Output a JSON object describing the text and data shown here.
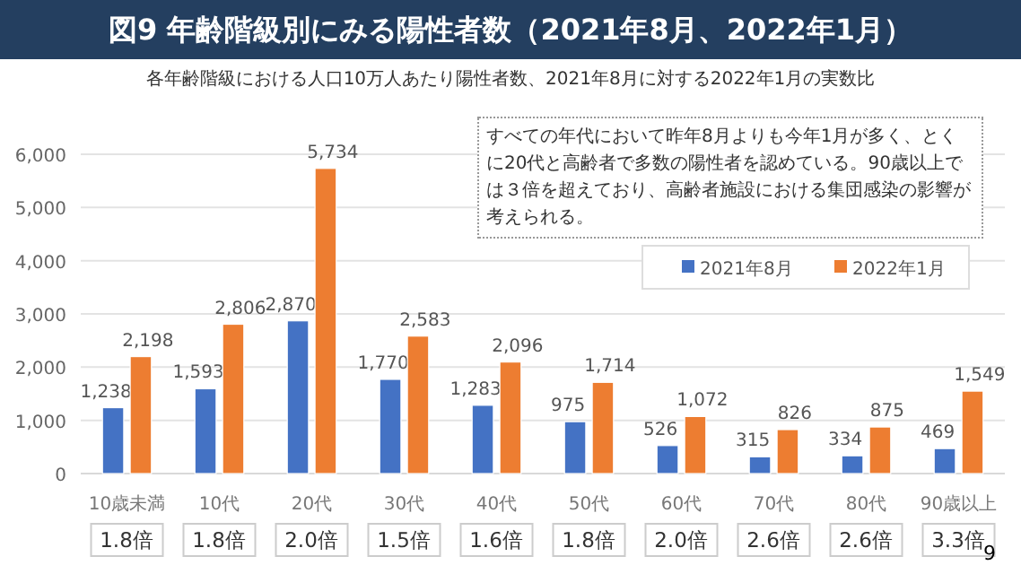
{
  "chart_data": {
    "type": "bar",
    "title": "図9 年齢階級別にみる陽性者数（2021年8月、2022年1月）",
    "subtitle": "各年齢階級における人口10万人あたり陽性者数、2021年8月に対する2022年1月の実数比",
    "categories": [
      "10歳未満",
      "10代",
      "20代",
      "30代",
      "40代",
      "50代",
      "60代",
      "70代",
      "80代",
      "90歳以上"
    ],
    "series": [
      {
        "name": "2021年8月",
        "color": "#4472c4",
        "values": [
          1238,
          1593,
          2870,
          1770,
          1283,
          975,
          526,
          315,
          334,
          469
        ],
        "value_labels": [
          "1,238",
          "1,593",
          "2,870",
          "1,770",
          "1,283",
          "975",
          "526",
          "315",
          "334",
          "469"
        ]
      },
      {
        "name": "2022年1月",
        "color": "#ed7d31",
        "values": [
          2198,
          2806,
          5734,
          2583,
          2096,
          1714,
          1072,
          826,
          875,
          1549
        ],
        "value_labels": [
          "2,198",
          "2,806",
          "5,734",
          "2,583",
          "2,096",
          "1,714",
          "1,072",
          "826",
          "875",
          "1,549"
        ]
      }
    ],
    "ylim": [
      0,
      6000
    ],
    "yticks": [
      0,
      {
        "value": 1000,
        "label": "1,000"
      },
      {
        "value": 2000,
        "label": "2,000"
      },
      {
        "value": 3000,
        "label": "3,000"
      },
      {
        "value": 4000,
        "label": "4,000"
      },
      {
        "value": 5000,
        "label": "5,000"
      },
      {
        "value": 6000,
        "label": "6,000"
      }
    ],
    "grid": "y",
    "legend": "top right",
    "annotations": [
      "すべての年代において昨年8月よりも今年1月が多く、とくに20代と高齢者で多数の陽性者を認めている。90歳以上では３倍を超えており、高齢者施設における集団感染の影響が考えられる。",
      "1.8倍",
      "1.8倍",
      "2.0倍",
      "1.5倍",
      "1.6倍",
      "1.8倍",
      "2.0倍",
      "2.6倍",
      "2.6倍",
      "3.3倍",
      "9"
    ]
  }
}
